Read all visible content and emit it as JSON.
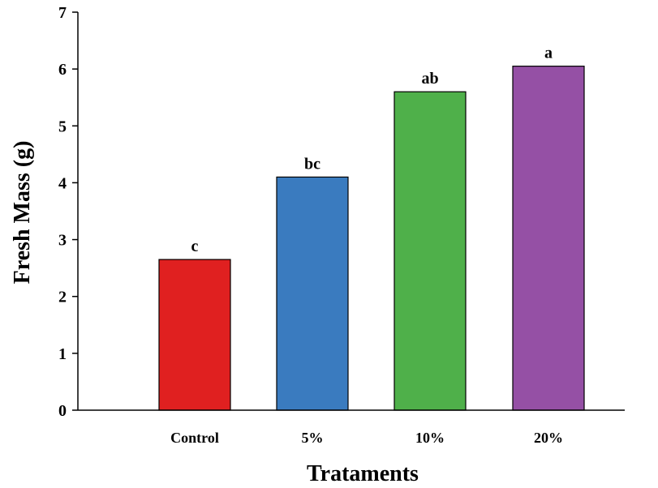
{
  "chart_data": {
    "type": "bar",
    "title": "",
    "xlabel": "Trataments",
    "ylabel": "Fresh Mass (g)",
    "ylim": [
      0,
      7
    ],
    "yticks": [
      "0",
      "1",
      "2",
      "3",
      "4",
      "5",
      "6",
      "7"
    ],
    "categories": [
      "Control",
      "5%",
      "10%",
      "20%"
    ],
    "values": [
      2.65,
      4.1,
      5.6,
      6.05
    ],
    "data_labels": [
      "c",
      "bc",
      "ab",
      "a"
    ],
    "colors": [
      "#e02020",
      "#3a7bbf",
      "#4fb04a",
      "#9550a5"
    ],
    "grid": false,
    "legend": "none"
  }
}
